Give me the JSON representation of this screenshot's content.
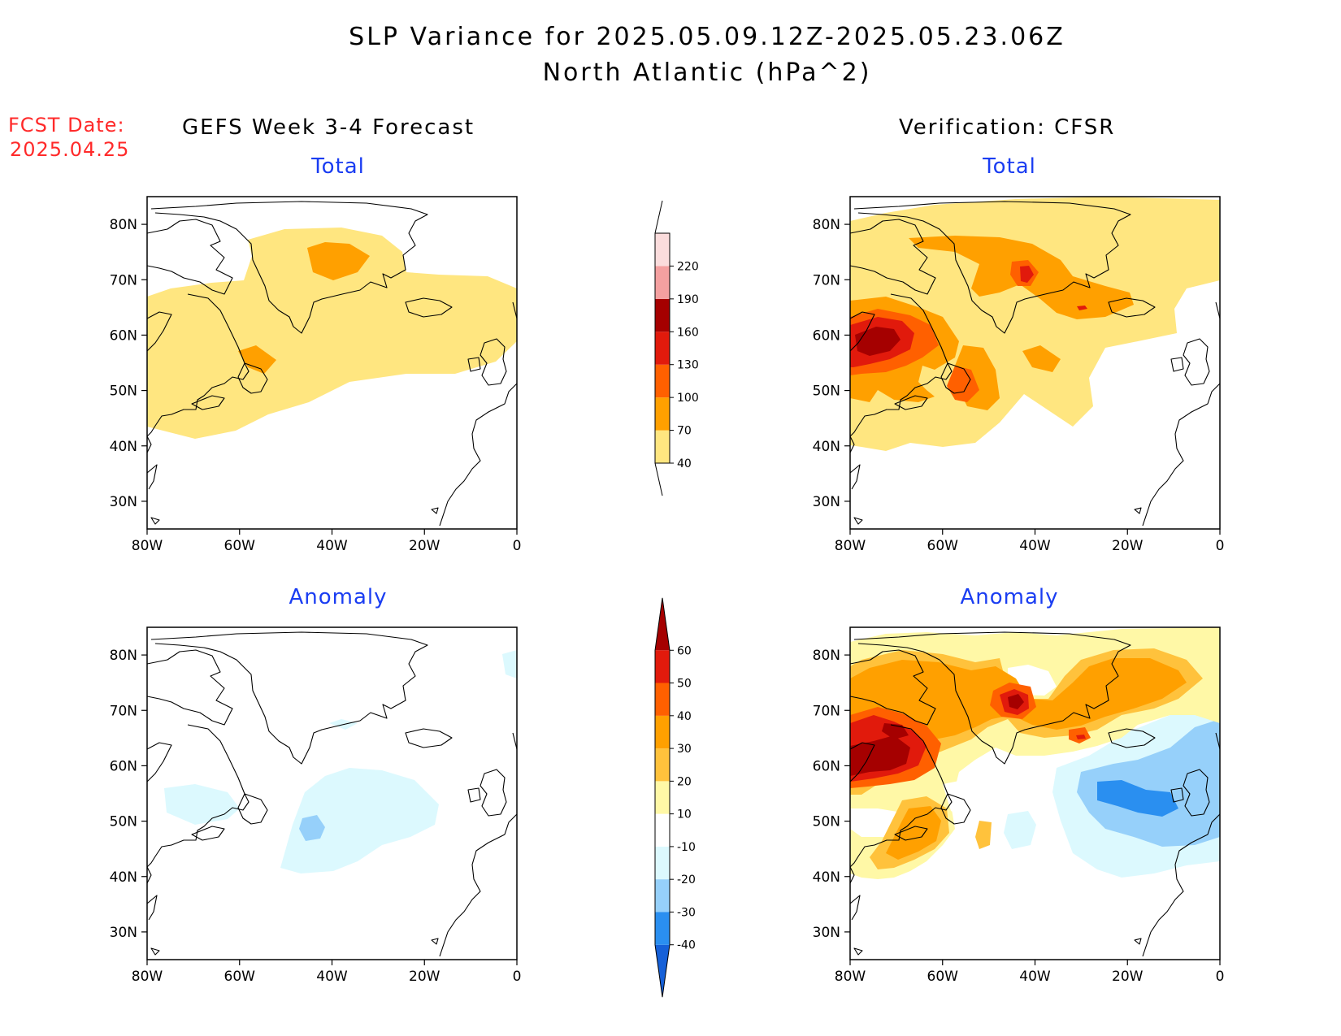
{
  "header": {
    "title_line1": "SLP Variance for 2025.05.09.12Z-2025.05.23.06Z",
    "title_line2": "North Atlantic (hPa^2)",
    "fcst_date_label": "FCST Date:",
    "fcst_date_value": "2025.04.25"
  },
  "columns": {
    "left": "GEFS Week 3-4 Forecast",
    "right": "Verification: CFSR"
  },
  "panels": {
    "total_label": "Total",
    "anomaly_label": "Anomaly"
  },
  "axes": {
    "lat_labels": [
      "80N",
      "70N",
      "60N",
      "50N",
      "40N",
      "30N"
    ],
    "lon_labels": [
      "80W",
      "60W",
      "40W",
      "20W",
      "0"
    ],
    "lat_range": [
      25,
      85
    ],
    "lon_range": [
      -80,
      0
    ]
  },
  "colorbars": {
    "total": {
      "levels": [
        "40",
        "70",
        "100",
        "130",
        "160",
        "190",
        "220"
      ],
      "colors": [
        "#ffe680",
        "#ffa000",
        "#ff6000",
        "#e11a0c",
        "#a50000",
        "#f4a0a0",
        "#fbdcdc"
      ]
    },
    "anomaly": {
      "levels": [
        "-40",
        "-30",
        "-20",
        "-10",
        "10",
        "20",
        "30",
        "40",
        "50",
        "60"
      ],
      "colors": [
        "#1560d8",
        "#2a8ff0",
        "#96d0fa",
        "#dcf9fe",
        "#ffffff",
        "#fff8a6",
        "#ffc23c",
        "#ffa000",
        "#ff6000",
        "#e11a0c",
        "#a50000"
      ]
    }
  }
}
